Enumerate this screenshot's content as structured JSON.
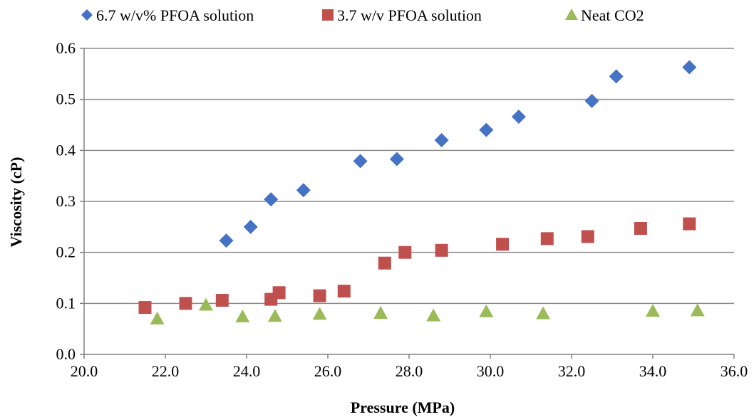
{
  "chart_data": {
    "type": "scatter",
    "title": "",
    "xlabel": "Pressure (MPa)",
    "ylabel": "Viscosity (cP)",
    "xlim": [
      20.0,
      36.0
    ],
    "ylim": [
      0.0,
      0.6
    ],
    "x_ticks": [
      "20.0",
      "22.0",
      "24.0",
      "26.0",
      "28.0",
      "30.0",
      "32.0",
      "34.0",
      "36.0"
    ],
    "y_ticks": [
      "0.0",
      "0.1",
      "0.2",
      "0.3",
      "0.4",
      "0.5",
      "0.6"
    ],
    "grid": "horizontal",
    "legend_position": "top",
    "series": [
      {
        "name": "6.7 w/v% PFOA solution",
        "marker": "diamond",
        "color": "#4472C4",
        "points": [
          [
            23.5,
            0.223
          ],
          [
            24.1,
            0.25
          ],
          [
            24.6,
            0.304
          ],
          [
            25.4,
            0.322
          ],
          [
            26.8,
            0.379
          ],
          [
            27.7,
            0.383
          ],
          [
            28.8,
            0.42
          ],
          [
            29.9,
            0.44
          ],
          [
            30.7,
            0.466
          ],
          [
            32.5,
            0.497
          ],
          [
            33.1,
            0.545
          ],
          [
            34.9,
            0.563
          ]
        ]
      },
      {
        "name": "3.7 w/v PFOA solution",
        "marker": "square",
        "color": "#C0504D",
        "points": [
          [
            21.5,
            0.092
          ],
          [
            22.5,
            0.1
          ],
          [
            23.4,
            0.106
          ],
          [
            24.6,
            0.108
          ],
          [
            24.8,
            0.121
          ],
          [
            25.8,
            0.115
          ],
          [
            26.4,
            0.124
          ],
          [
            27.4,
            0.179
          ],
          [
            27.9,
            0.2
          ],
          [
            28.8,
            0.204
          ],
          [
            30.3,
            0.216
          ],
          [
            31.4,
            0.227
          ],
          [
            32.4,
            0.231
          ],
          [
            33.7,
            0.247
          ],
          [
            34.9,
            0.256
          ]
        ]
      },
      {
        "name": "Neat CO2",
        "marker": "triangle",
        "color": "#9BBB59",
        "points": [
          [
            21.8,
            0.07
          ],
          [
            23.0,
            0.097
          ],
          [
            23.9,
            0.074
          ],
          [
            24.7,
            0.075
          ],
          [
            25.8,
            0.079
          ],
          [
            27.3,
            0.081
          ],
          [
            28.6,
            0.076
          ],
          [
            29.9,
            0.084
          ],
          [
            31.3,
            0.08
          ],
          [
            34.0,
            0.085
          ],
          [
            35.1,
            0.086
          ]
        ]
      }
    ]
  }
}
